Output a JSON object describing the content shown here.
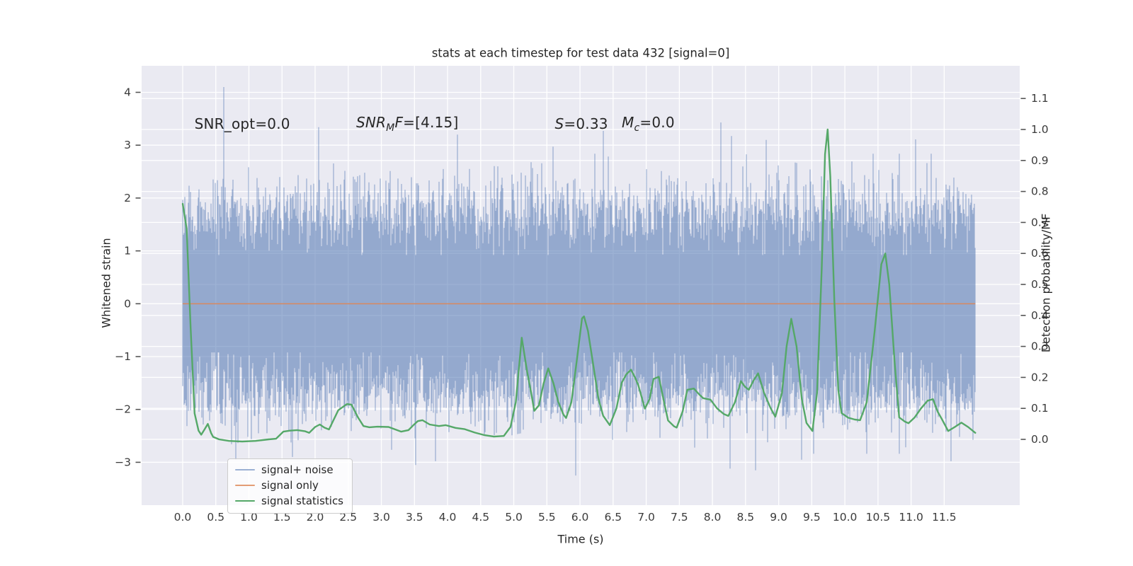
{
  "figure": {
    "title": "stats at each timestep for test data 432 [signal=0]",
    "background_color": "#ffffff",
    "axes_background_color": "#eaeaf2",
    "grid_color": "#ffffff",
    "text_color": "#262626"
  },
  "chart_data": {
    "type": "line",
    "title": "stats at each timestep for test data 432 [signal=0]",
    "xlabel": "Time (s)",
    "ylabel_left": "Whitened strain",
    "ylabel_right": "Detection probability/MF",
    "grid": true,
    "xlim": [
      -0.62,
      12.64
    ],
    "ylim_left": [
      -3.811,
      4.502
    ],
    "ylim_right": [
      -0.2123,
      1.2055
    ],
    "x_ticks": [
      {
        "label": "0.0",
        "value": 0.0
      },
      {
        "label": "0.5",
        "value": 0.5
      },
      {
        "label": "1.0",
        "value": 1.0
      },
      {
        "label": "1.5",
        "value": 1.5
      },
      {
        "label": "2.0",
        "value": 2.0
      },
      {
        "label": "2.5",
        "value": 2.5
      },
      {
        "label": "3.0",
        "value": 3.0
      },
      {
        "label": "3.5",
        "value": 3.5
      },
      {
        "label": "4.0",
        "value": 4.0
      },
      {
        "label": "4.5",
        "value": 4.5
      },
      {
        "label": "5.0",
        "value": 5.0
      },
      {
        "label": "5.5",
        "value": 5.5
      },
      {
        "label": "6.0",
        "value": 6.0
      },
      {
        "label": "6.5",
        "value": 6.5
      },
      {
        "label": "7.0",
        "value": 7.0
      },
      {
        "label": "7.5",
        "value": 7.5
      },
      {
        "label": "8.0",
        "value": 8.0
      },
      {
        "label": "8.5",
        "value": 8.5
      },
      {
        "label": "9.0",
        "value": 9.0
      },
      {
        "label": "9.5",
        "value": 9.5
      },
      {
        "label": "10.0",
        "value": 10.0
      },
      {
        "label": "10.5",
        "value": 10.5
      },
      {
        "label": "11.0",
        "value": 11.0
      },
      {
        "label": "11.5",
        "value": 11.5
      }
    ],
    "left_ticks": [
      {
        "label": "4",
        "value": 4
      },
      {
        "label": "3",
        "value": 3
      },
      {
        "label": "2",
        "value": 2
      },
      {
        "label": "1",
        "value": 1
      },
      {
        "label": "0",
        "value": 0
      },
      {
        "label": "−1",
        "value": -1
      },
      {
        "label": "−2",
        "value": -2
      },
      {
        "label": "−3",
        "value": -3
      }
    ],
    "right_ticks": [
      {
        "label": "1.1",
        "value": 1.1
      },
      {
        "label": "1.0",
        "value": 1.0
      },
      {
        "label": "0.9",
        "value": 0.9
      },
      {
        "label": "0.8",
        "value": 0.8
      },
      {
        "label": "0.7",
        "value": 0.7
      },
      {
        "label": "0.6",
        "value": 0.6
      },
      {
        "label": "0.5",
        "value": 0.5
      },
      {
        "label": "0.4",
        "value": 0.4
      },
      {
        "label": "0.3",
        "value": 0.3
      },
      {
        "label": "0.2",
        "value": 0.2
      },
      {
        "label": "0.1",
        "value": 0.1
      },
      {
        "label": "0.0",
        "value": 0.0
      }
    ],
    "legend": {
      "position": "lower-left",
      "entries": [
        {
          "label": "signal+ noise",
          "color": "rgba(76,114,176,0.55)"
        },
        {
          "label": "signal only",
          "color": "rgba(221,132,82,0.8)"
        },
        {
          "label": "signal statistics",
          "color": "#55a868"
        }
      ]
    },
    "annotations": [
      {
        "text": "SNR_opt=0.0",
        "x": 0.178,
        "y_left": 3.4,
        "parts": [
          {
            "t": "SNR_opt=0.0",
            "italic": false,
            "sub": false
          }
        ]
      },
      {
        "text": "SNR_MF=[4.15]",
        "x": 2.62,
        "y_left": 3.4,
        "parts": [
          {
            "t": "SNR",
            "italic": true,
            "sub": false
          },
          {
            "t": "M",
            "italic": true,
            "sub": true
          },
          {
            "t": "F",
            "italic": true,
            "sub": false
          },
          {
            "t": "=[4.15]",
            "italic": false,
            "sub": false
          }
        ]
      },
      {
        "text": "S=0.33",
        "x": 5.62,
        "y_left": 3.4,
        "parts": [
          {
            "t": "S",
            "italic": true,
            "sub": false
          },
          {
            "t": "=0.33",
            "italic": false,
            "sub": false
          }
        ]
      },
      {
        "text": "M_c=0.0",
        "x": 6.63,
        "y_left": 3.4,
        "parts": [
          {
            "t": "M",
            "italic": true,
            "sub": false
          },
          {
            "t": "c",
            "italic": true,
            "sub": true
          },
          {
            "t": "=0.0",
            "italic": false,
            "sub": false
          }
        ]
      }
    ],
    "series": [
      {
        "name": "signal+ noise",
        "axis": "left",
        "style": "noise_envelope",
        "color": "#4c72b0",
        "alpha": 0.55,
        "x_start": 0.0,
        "x_end": 11.97,
        "sigma": 0.94,
        "mean_extreme": 1.82,
        "extreme_sd": 0.4,
        "spike_prob": 0.006,
        "seed": 1337,
        "top_spikes": [
          [
            0.62,
            4.1
          ],
          [
            2.05,
            3.34
          ],
          [
            4.15,
            3.2
          ],
          [
            6.35,
            3.27
          ],
          [
            8.13,
            3.43
          ],
          [
            8.81,
            3.1
          ],
          [
            11.07,
            3.11
          ]
        ],
        "bottom_spikes": [
          [
            0.8,
            -2.95
          ],
          [
            1.66,
            -2.9
          ],
          [
            3.52,
            -3.05
          ],
          [
            3.82,
            -2.98
          ],
          [
            5.93,
            -3.25
          ],
          [
            8.27,
            -3.12
          ],
          [
            9.35,
            -2.95
          ],
          [
            11.6,
            -2.98
          ]
        ]
      },
      {
        "name": "signal only",
        "axis": "left",
        "style": "hline",
        "color": "#dd8452",
        "alpha": 0.85,
        "y": 0.0,
        "x_start": 0.0,
        "x_end": 11.97
      },
      {
        "name": "signal statistics",
        "axis": "right",
        "style": "line",
        "color": "#55a868",
        "alpha": 1.0,
        "points": [
          [
            0.0,
            0.76
          ],
          [
            0.06,
            0.68
          ],
          [
            0.12,
            0.36
          ],
          [
            0.18,
            0.084
          ],
          [
            0.24,
            0.028
          ],
          [
            0.28,
            0.015
          ],
          [
            0.33,
            0.032
          ],
          [
            0.38,
            0.05
          ],
          [
            0.43,
            0.02
          ],
          [
            0.46,
            0.008
          ],
          [
            0.55,
            0.0
          ],
          [
            0.7,
            -0.005
          ],
          [
            0.9,
            -0.007
          ],
          [
            1.1,
            -0.005
          ],
          [
            1.3,
            0.0
          ],
          [
            1.41,
            0.002
          ],
          [
            1.52,
            0.025
          ],
          [
            1.62,
            0.028
          ],
          [
            1.73,
            0.03
          ],
          [
            1.85,
            0.026
          ],
          [
            1.91,
            0.021
          ],
          [
            2.0,
            0.04
          ],
          [
            2.07,
            0.048
          ],
          [
            2.14,
            0.038
          ],
          [
            2.21,
            0.032
          ],
          [
            2.35,
            0.094
          ],
          [
            2.48,
            0.114
          ],
          [
            2.55,
            0.112
          ],
          [
            2.65,
            0.07
          ],
          [
            2.73,
            0.043
          ],
          [
            2.82,
            0.039
          ],
          [
            2.94,
            0.041
          ],
          [
            3.11,
            0.04
          ],
          [
            3.2,
            0.033
          ],
          [
            3.3,
            0.025
          ],
          [
            3.41,
            0.03
          ],
          [
            3.48,
            0.045
          ],
          [
            3.55,
            0.059
          ],
          [
            3.62,
            0.062
          ],
          [
            3.73,
            0.048
          ],
          [
            3.87,
            0.043
          ],
          [
            3.97,
            0.046
          ],
          [
            4.12,
            0.037
          ],
          [
            4.26,
            0.033
          ],
          [
            4.41,
            0.022
          ],
          [
            4.55,
            0.014
          ],
          [
            4.7,
            0.009
          ],
          [
            4.85,
            0.011
          ],
          [
            4.95,
            0.04
          ],
          [
            5.03,
            0.12
          ],
          [
            5.12,
            0.328
          ],
          [
            5.2,
            0.22
          ],
          [
            5.26,
            0.153
          ],
          [
            5.31,
            0.092
          ],
          [
            5.38,
            0.11
          ],
          [
            5.45,
            0.18
          ],
          [
            5.52,
            0.229
          ],
          [
            5.6,
            0.18
          ],
          [
            5.67,
            0.122
          ],
          [
            5.75,
            0.08
          ],
          [
            5.79,
            0.069
          ],
          [
            5.87,
            0.12
          ],
          [
            5.95,
            0.252
          ],
          [
            6.03,
            0.39
          ],
          [
            6.06,
            0.397
          ],
          [
            6.12,
            0.35
          ],
          [
            6.2,
            0.24
          ],
          [
            6.28,
            0.13
          ],
          [
            6.35,
            0.076
          ],
          [
            6.45,
            0.046
          ],
          [
            6.55,
            0.1
          ],
          [
            6.63,
            0.183
          ],
          [
            6.7,
            0.21
          ],
          [
            6.77,
            0.225
          ],
          [
            6.83,
            0.2
          ],
          [
            6.88,
            0.175
          ],
          [
            6.98,
            0.099
          ],
          [
            7.05,
            0.13
          ],
          [
            7.11,
            0.195
          ],
          [
            7.19,
            0.202
          ],
          [
            7.26,
            0.13
          ],
          [
            7.33,
            0.061
          ],
          [
            7.42,
            0.042
          ],
          [
            7.46,
            0.038
          ],
          [
            7.55,
            0.09
          ],
          [
            7.62,
            0.16
          ],
          [
            7.72,
            0.164
          ],
          [
            7.8,
            0.145
          ],
          [
            7.86,
            0.133
          ],
          [
            7.97,
            0.128
          ],
          [
            8.07,
            0.1
          ],
          [
            8.17,
            0.082
          ],
          [
            8.24,
            0.0755
          ],
          [
            8.34,
            0.12
          ],
          [
            8.43,
            0.188
          ],
          [
            8.49,
            0.17
          ],
          [
            8.55,
            0.16
          ],
          [
            8.62,
            0.19
          ],
          [
            8.69,
            0.213
          ],
          [
            8.78,
            0.15
          ],
          [
            8.88,
            0.1
          ],
          [
            8.95,
            0.073
          ],
          [
            9.05,
            0.15
          ],
          [
            9.12,
            0.3
          ],
          [
            9.19,
            0.389
          ],
          [
            9.27,
            0.3
          ],
          [
            9.35,
            0.13
          ],
          [
            9.42,
            0.053
          ],
          [
            9.51,
            0.027
          ],
          [
            9.58,
            0.15
          ],
          [
            9.65,
            0.55
          ],
          [
            9.7,
            0.92
          ],
          [
            9.74,
            1.0
          ],
          [
            9.78,
            0.85
          ],
          [
            9.84,
            0.45
          ],
          [
            9.9,
            0.16
          ],
          [
            9.95,
            0.085
          ],
          [
            10.05,
            0.07
          ],
          [
            10.15,
            0.064
          ],
          [
            10.23,
            0.062
          ],
          [
            10.33,
            0.12
          ],
          [
            10.45,
            0.35
          ],
          [
            10.55,
            0.565
          ],
          [
            10.61,
            0.6
          ],
          [
            10.67,
            0.5
          ],
          [
            10.75,
            0.25
          ],
          [
            10.82,
            0.071
          ],
          [
            10.9,
            0.058
          ],
          [
            10.96,
            0.052
          ],
          [
            11.05,
            0.07
          ],
          [
            11.15,
            0.1
          ],
          [
            11.25,
            0.125
          ],
          [
            11.33,
            0.13
          ],
          [
            11.4,
            0.09
          ],
          [
            11.46,
            0.067
          ],
          [
            11.56,
            0.027
          ],
          [
            11.66,
            0.04
          ],
          [
            11.76,
            0.054
          ],
          [
            11.86,
            0.04
          ],
          [
            11.97,
            0.021
          ]
        ]
      }
    ]
  }
}
